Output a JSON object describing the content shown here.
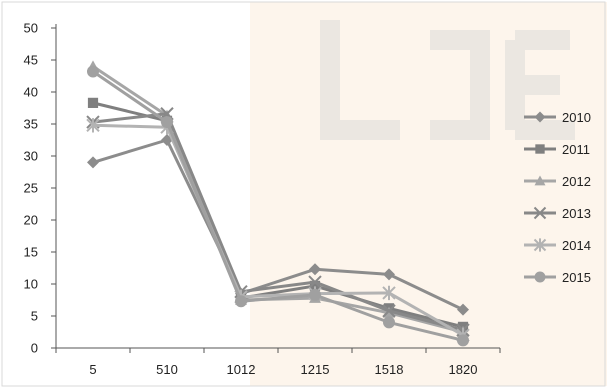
{
  "chart_data": {
    "type": "line",
    "categories": [
      "5",
      "510",
      "1012",
      "1215",
      "1518",
      "1820"
    ],
    "ylim": [
      0,
      50
    ],
    "yticks": [
      0,
      5,
      10,
      15,
      20,
      25,
      30,
      35,
      40,
      45,
      50
    ],
    "grid": false,
    "legend_position": "right",
    "series": [
      {
        "name": "2010",
        "marker": "diamond",
        "color": "#8c8c8c",
        "values": [
          29,
          32.5,
          8.5,
          12.3,
          11.5,
          6
        ]
      },
      {
        "name": "2011",
        "marker": "square",
        "color": "#7f7f7f",
        "values": [
          38.3,
          35.5,
          7.8,
          9.7,
          6.2,
          3.3
        ]
      },
      {
        "name": "2012",
        "marker": "triangle",
        "color": "#a6a6a6",
        "values": [
          44,
          36.3,
          7.5,
          7.8,
          5.5,
          2.5
        ]
      },
      {
        "name": "2013",
        "marker": "x",
        "color": "#888888",
        "values": [
          35.3,
          36.6,
          8.8,
          10.3,
          5.8,
          2.8
        ]
      },
      {
        "name": "2014",
        "marker": "asterisk",
        "color": "#b3b3b3",
        "values": [
          34.8,
          34.5,
          8,
          8.5,
          8.6,
          2
        ]
      },
      {
        "name": "2015",
        "marker": "circle",
        "color": "#a0a0a0",
        "values": [
          43.2,
          35.3,
          7.3,
          8.3,
          4,
          1.2
        ]
      }
    ]
  }
}
